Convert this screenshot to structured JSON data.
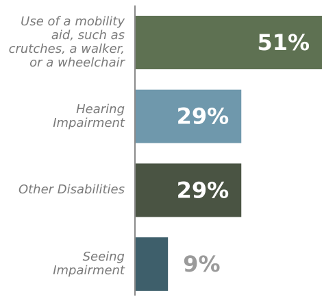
{
  "chart_data": {
    "type": "bar",
    "orientation": "horizontal",
    "categories": [
      "Use of a mobility\naid, such as\ncrutches, a walker,\nor a wheelchair",
      "Hearing\nImpairment",
      "Other Disabilities",
      "Seeing\nImpairment"
    ],
    "values": [
      51,
      29,
      29,
      9
    ],
    "value_labels": [
      "51%",
      "29%",
      "29%",
      "9%"
    ],
    "colors": [
      "#5e7152",
      "#6f98ac",
      "#4a5443",
      "#3e5f6b"
    ]
  }
}
